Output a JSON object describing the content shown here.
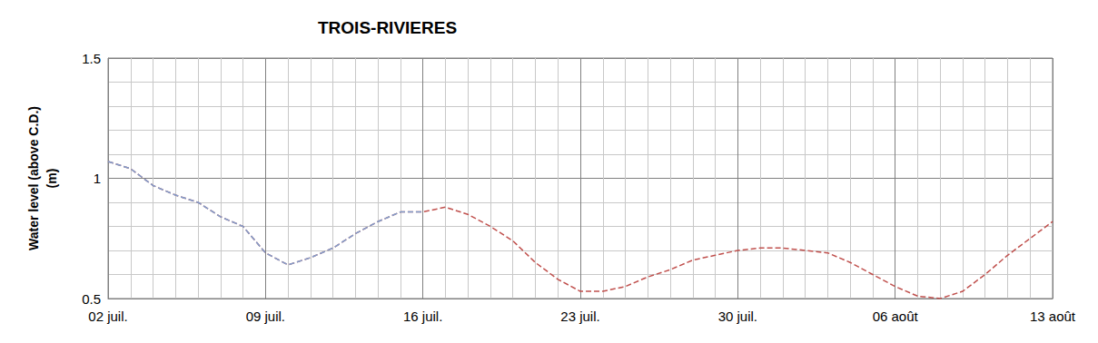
{
  "chart_data": {
    "type": "line",
    "title": "TROIS-RIVIERES",
    "y_label": "Water level (above C.D.)\n(m)",
    "categories": [
      "02 juil.",
      null,
      null,
      null,
      null,
      null,
      null,
      "09 juil.",
      null,
      null,
      null,
      null,
      null,
      null,
      "16 juil.",
      null,
      null,
      null,
      null,
      null,
      null,
      "23 juil.",
      null,
      null,
      null,
      null,
      null,
      null,
      "30 juil.",
      null,
      null,
      null,
      null,
      null,
      null,
      "06 août",
      null,
      null,
      null,
      null,
      null,
      null,
      "13 août"
    ],
    "series": [
      {
        "color": "#c0504d",
        "line_style": "dashed",
        "marker": "none",
        "values": [
          1.07,
          1.04,
          0.97,
          0.93,
          0.9,
          0.84,
          0.8,
          0.69,
          0.64,
          0.67,
          0.71,
          0.77,
          0.82,
          0.86,
          0.86,
          0.88,
          0.85,
          0.8,
          0.74,
          0.65,
          0.58,
          0.53,
          0.53,
          0.55,
          0.59,
          0.62,
          0.66,
          0.68,
          0.7,
          0.71,
          0.71,
          0.7,
          0.69,
          0.65,
          0.6,
          0.55,
          0.51,
          0.5,
          0.53,
          0.6,
          0.68,
          0.75,
          0.82
        ]
      },
      {
        "color": "#7f9fcf",
        "line_style": "dashed",
        "marker": "none",
        "values": [
          1.07,
          1.04,
          0.97,
          0.93,
          0.9,
          0.84,
          0.8,
          0.69,
          0.64,
          0.67,
          0.71,
          0.77,
          0.82,
          0.86,
          0.86,
          null,
          null,
          null,
          null,
          null,
          null,
          null,
          null,
          null,
          null,
          null,
          null,
          null,
          null,
          null,
          null,
          null,
          null,
          null,
          null,
          null,
          null,
          null,
          null,
          null,
          null,
          null,
          null
        ]
      }
    ],
    "ylim": [
      0.5,
      1.5
    ],
    "yticks": [
      0.5,
      1,
      1.5
    ],
    "grid": true
  }
}
